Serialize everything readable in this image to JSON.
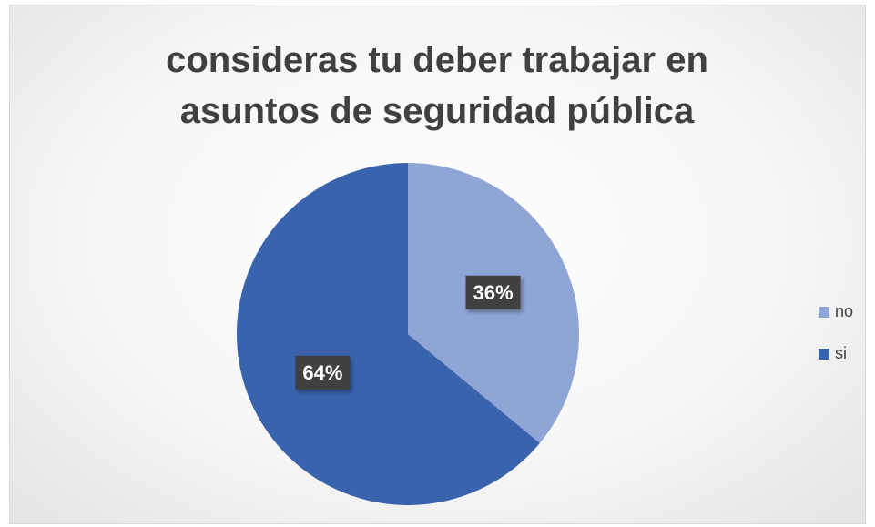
{
  "chart_data": {
    "type": "pie",
    "title": "consideras tu deber trabajar en asuntos de seguridad pública",
    "categories": [
      "no",
      "si"
    ],
    "values": [
      36,
      64
    ],
    "value_labels": [
      "36%",
      "64%"
    ],
    "colors": [
      "#8fa5d6",
      "#3a63ae"
    ],
    "legend": "right"
  }
}
